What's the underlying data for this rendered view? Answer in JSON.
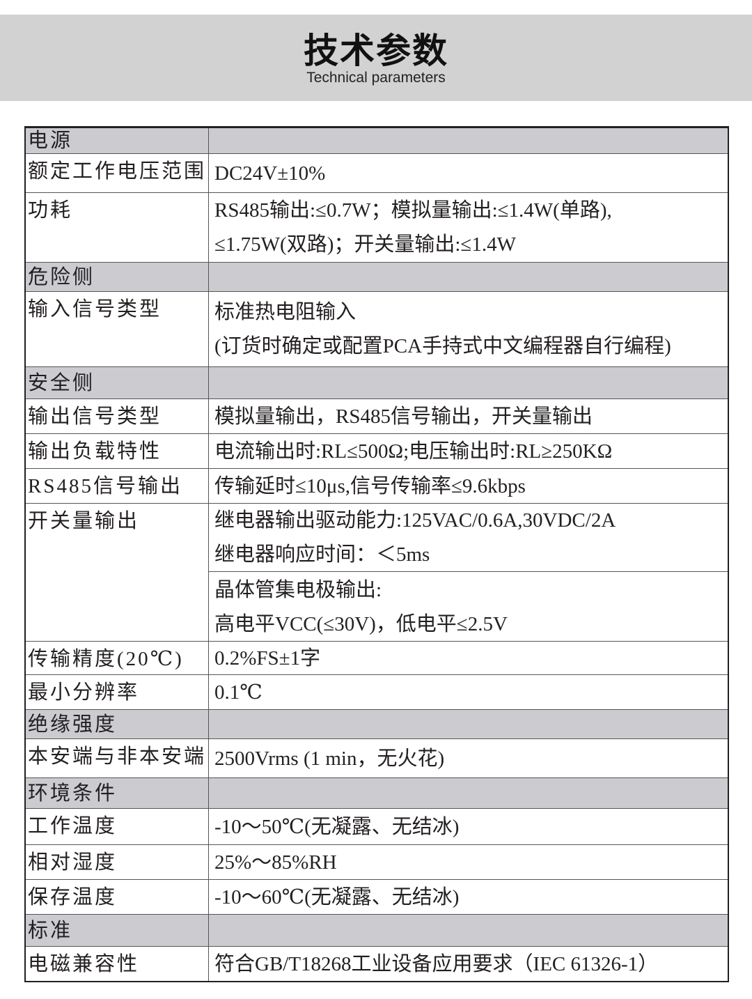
{
  "header": {
    "title": "技术参数",
    "subtitle": "Technical parameters"
  },
  "colors": {
    "header_band": "#d3d2d3",
    "section_row": "#cbcbd0",
    "border": "#231f20"
  },
  "rows": [
    {
      "label": "电源",
      "section": true,
      "values": []
    },
    {
      "label": "额定工作电压范围",
      "values": [
        [
          "DC24V±10%"
        ]
      ]
    },
    {
      "label": "功耗",
      "values": [
        [
          "RS485输出:≤0.7W；模拟量输出:≤1.4W(单路),",
          "≤1.75W(双路)；开关量输出:≤1.4W"
        ]
      ]
    },
    {
      "label": "危险侧",
      "section": true,
      "values": []
    },
    {
      "label": "输入信号类型",
      "values": [
        [
          "标准热电阻输入",
          "(订货时确定或配置PCA手持式中文编程器自行编程)"
        ]
      ]
    },
    {
      "label": "安全侧",
      "section": true,
      "values": []
    },
    {
      "label": "输出信号类型",
      "values": [
        [
          "模拟量输出，RS485信号输出，开关量输出"
        ]
      ]
    },
    {
      "label": "输出负载特性",
      "values": [
        [
          "电流输出时:RL≤500Ω;电压输出时:RL≥250KΩ"
        ]
      ]
    },
    {
      "label": "RS485信号输出",
      "values": [
        [
          "传输延时≤10μs,信号传输率≤9.6kbps"
        ]
      ]
    },
    {
      "label": "开关量输出",
      "values": [
        [
          "继电器输出驱动能力:125VAC/0.6A,30VDC/2A",
          "继电器响应时间：＜5ms"
        ],
        [
          "晶体管集电极输出:",
          "高电平VCC(≤30V)，低电平≤2.5V"
        ]
      ]
    },
    {
      "label": "传输精度(20℃)",
      "values": [
        [
          "0.2%FS±1字"
        ]
      ]
    },
    {
      "label": "最小分辨率",
      "values": [
        [
          "0.1℃"
        ]
      ]
    },
    {
      "label": "绝缘强度",
      "section": true,
      "values": []
    },
    {
      "label": "本安端与非本安端",
      "values": [
        [
          "2500Vrms (1 min，无火花)"
        ]
      ]
    },
    {
      "label": "环境条件",
      "section": true,
      "values": []
    },
    {
      "label": "工作温度",
      "values": [
        [
          "-10～50℃(无凝露、无结冰)"
        ]
      ]
    },
    {
      "label": "相对湿度",
      "values": [
        [
          "25%～85%RH"
        ]
      ]
    },
    {
      "label": "保存温度",
      "values": [
        [
          "-10～60℃(无凝露、无结冰)"
        ]
      ]
    },
    {
      "label": "标准",
      "section": true,
      "values": []
    },
    {
      "label": "电磁兼容性",
      "values": [
        [
          "符合GB/T18268工业设备应用要求（IEC 61326-1）"
        ]
      ]
    }
  ]
}
